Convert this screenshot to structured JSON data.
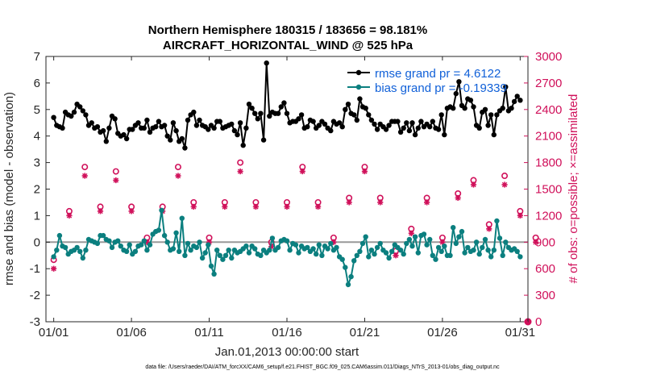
{
  "chart_data": {
    "type": "line",
    "title_line1": "Northern Hemisphere 180315 / 183656 = 98.181%",
    "title_line2": "AIRCRAFT_HORIZONTAL_WIND @ 525 hPa",
    "xlabel": "Jan.01,2013 00:00:00 start",
    "ylabel_left": "rmse and bias (model - observation)",
    "ylabel_right": "# of obs: o=possible; ×=assimilated",
    "footnote": "data file: /Users/raeder/DAI/ATM_forcXX/CAM6_setup/f.e21.FHIST_BGC.f09_025.CAM6assim.011/Diags_NTrS_2013-01/obs_diag_output.nc",
    "xlim": [
      0.5,
      31.5
    ],
    "ylim_left": [
      -3,
      7
    ],
    "ylim_right": [
      0,
      3000
    ],
    "x_ticks": [
      1,
      6,
      11,
      16,
      21,
      26,
      31
    ],
    "x_tick_labels": [
      "01/01",
      "01/06",
      "01/11",
      "01/16",
      "01/21",
      "01/26",
      "01/31"
    ],
    "y_ticks_left": [
      "-3",
      "-2",
      "-1",
      "0",
      "1",
      "2",
      "3",
      "4",
      "5",
      "6",
      "7"
    ],
    "y_ticks_right": [
      "0",
      "300",
      "600",
      "900",
      "1200",
      "1500",
      "1800",
      "2100",
      "2400",
      "2700",
      "3000"
    ],
    "colors": {
      "rmse": "#000000",
      "bias": "#0b7f7f",
      "obs": "#d0105a",
      "zero_line": "#999999",
      "legend_text": "#1060d8"
    },
    "series": [
      {
        "name": "rmse grand pr = 4.6122",
        "axis": "left",
        "values": [
          4.7,
          4.4,
          4.35,
          4.3,
          4.9,
          4.8,
          4.75,
          4.9,
          5.2,
          5.1,
          4.95,
          4.8,
          4.4,
          4.5,
          4.3,
          4.35,
          4.15,
          4.2,
          3.8,
          4.3,
          4.75,
          4.65,
          4.1,
          4.0,
          4.05,
          3.9,
          4.25,
          4.25,
          4.4,
          4.5,
          4.3,
          4.3,
          4.6,
          4.15,
          4.3,
          4.35,
          4.55,
          4.35,
          4.4,
          4.0,
          3.85,
          4.5,
          4.2,
          3.8,
          3.9,
          3.55,
          4.6,
          4.8,
          4.9,
          4.4,
          4.6,
          4.4,
          4.35,
          4.25,
          4.4,
          4.3,
          4.55,
          4.55,
          4.3,
          4.35,
          4.4,
          4.45,
          4.2,
          4.05,
          4.5,
          3.65,
          4.3,
          5.2,
          5.05,
          4.85,
          4.65,
          4.85,
          3.85,
          6.75,
          4.75,
          4.9,
          4.85,
          4.85,
          5.1,
          5.25,
          4.85,
          4.5,
          4.55,
          4.55,
          4.65,
          4.8,
          4.3,
          4.35,
          4.6,
          4.55,
          4.3,
          4.4,
          4.55,
          4.45,
          4.3,
          4.2,
          4.55,
          4.45,
          4.5,
          4.35,
          5.0,
          5.2,
          4.85,
          4.8,
          4.6,
          5.4,
          5.1,
          5.05,
          4.8,
          4.6,
          4.45,
          4.25,
          4.45,
          4.35,
          4.25,
          4.4,
          4.55,
          4.55,
          4.55,
          4.15,
          4.3,
          4.5,
          4.2,
          4.5,
          4.05,
          4.3,
          4.55,
          4.35,
          4.45,
          4.35,
          4.55,
          4.3,
          4.25,
          4.8,
          4.05,
          5.05,
          5.1,
          5.05,
          5.6,
          6.05,
          5.15,
          5.05,
          5.4,
          5.35,
          5.1,
          4.4,
          4.3,
          4.9,
          5.0,
          4.4,
          4.8,
          4.05,
          4.8,
          4.95,
          5.05,
          5.85,
          4.95,
          5.05,
          5.3,
          5.5,
          5.35
        ]
      },
      {
        "name": "bias grand pr = -0.19339",
        "axis": "left",
        "values": [
          -0.55,
          -0.3,
          0.25,
          -0.15,
          -0.2,
          -0.45,
          -0.35,
          -0.3,
          -0.2,
          -0.35,
          -0.6,
          -0.3,
          0.1,
          0.05,
          0.0,
          -0.05,
          0.25,
          0.25,
          0.1,
          0.05,
          -0.2,
          0.0,
          0.05,
          -0.15,
          -0.3,
          -0.35,
          -0.1,
          -0.45,
          -0.35,
          -0.15,
          -0.1,
          0.05,
          -0.3,
          -0.1,
          0.3,
          0.4,
          0.45,
          1.2,
          0.25,
          0.0,
          -0.3,
          -0.25,
          0.35,
          -0.35,
          0.9,
          -0.5,
          -0.05,
          -0.3,
          -0.15,
          -0.2,
          0.0,
          -0.6,
          -0.4,
          -0.1,
          -0.9,
          -1.2,
          -0.3,
          -0.5,
          -0.65,
          -0.5,
          -0.3,
          -0.6,
          -0.3,
          -0.4,
          -0.35,
          -0.25,
          -0.15,
          -0.4,
          -0.15,
          -0.25,
          -0.45,
          -0.5,
          -0.3,
          -0.4,
          -0.3,
          0.15,
          -0.3,
          -0.2,
          0.05,
          0.1,
          0.05,
          -0.3,
          -0.05,
          -0.1,
          -0.4,
          -0.15,
          -0.25,
          -0.2,
          -0.35,
          -0.25,
          -0.45,
          -0.1,
          -0.5,
          -0.15,
          -0.25,
          -0.05,
          -0.3,
          -0.2,
          -0.55,
          -0.65,
          -0.95,
          -1.6,
          -1.3,
          -0.7,
          -0.5,
          -0.35,
          -0.05,
          0.2,
          -0.55,
          -0.3,
          -0.45,
          -0.2,
          -0.05,
          -0.3,
          -0.4,
          -0.6,
          -0.35,
          -0.1,
          -0.2,
          -0.3,
          -0.45,
          -0.05,
          0.1,
          -0.15,
          0.2,
          -0.4,
          0.25,
          0.3,
          -0.1,
          0.1,
          -0.5,
          -0.65,
          -0.2,
          -0.35,
          -0.15,
          -0.5,
          -0.5,
          0.55,
          -0.05,
          0.2,
          0.4,
          -0.4,
          -0.2,
          -0.35,
          -0.3,
          0.0,
          -0.45,
          -0.2,
          0.1,
          -0.3,
          -0.55,
          -0.3,
          0.8,
          0.15,
          -0.5,
          0.0,
          -0.2,
          -0.3,
          -0.25,
          -0.35,
          -0.55
        ]
      }
    ],
    "obs_possible": [
      0.7,
      1.25,
      1.75,
      1.3,
      1.7,
      1.3,
      0.95,
      1.3,
      1.75,
      1.35,
      0.95,
      1.35,
      1.8,
      1.35,
      0.9,
      1.35,
      1.75,
      1.35,
      0.95,
      1.4,
      1.75,
      1.4,
      0.8,
      1.05,
      1.4,
      0.95,
      1.45,
      1.6,
      1.1,
      1.65,
      1.25,
      0.95
    ],
    "obs_assimilated": [
      0.6,
      1.2,
      1.65,
      1.25,
      1.6,
      1.25,
      0.9,
      1.25,
      1.65,
      1.3,
      0.9,
      1.3,
      1.7,
      1.3,
      0.85,
      1.3,
      1.7,
      1.3,
      0.9,
      1.35,
      1.7,
      1.35,
      0.75,
      1.0,
      1.35,
      0.9,
      1.4,
      1.55,
      1.05,
      1.55,
      1.2,
      0.9
    ]
  }
}
